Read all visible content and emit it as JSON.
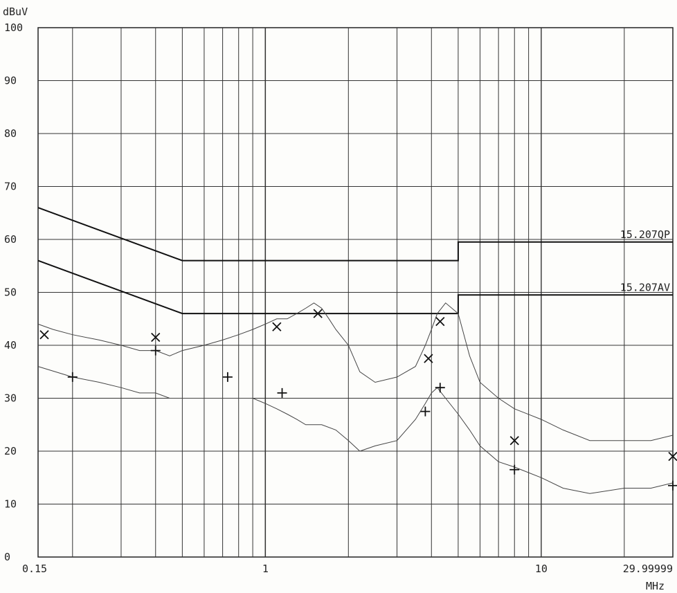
{
  "chart_data": {
    "type": "line",
    "xscale": "log",
    "xlim": [
      0.15,
      29.99999
    ],
    "ylim": [
      0,
      100
    ],
    "ylabel": "dBuV",
    "xlabel": "MHz",
    "yticks": [
      "0",
      "10",
      "20",
      "30",
      "40",
      "50",
      "60",
      "70",
      "80",
      "90",
      "100"
    ],
    "xticklabels": [
      {
        "value": 0.15,
        "label": "0.15"
      },
      {
        "value": 1,
        "label": "1"
      },
      {
        "value": 10,
        "label": "10"
      },
      {
        "value": 29.99999,
        "label": "29.99999"
      }
    ],
    "grid": true,
    "series": [
      {
        "name": "15.207QP",
        "kind": "limit",
        "x": [
          0.15,
          0.5,
          0.5,
          5,
          5,
          29.99999
        ],
        "y": [
          66,
          56,
          56,
          56,
          59.5,
          59.5
        ]
      },
      {
        "name": "15.207AV",
        "kind": "limit",
        "x": [
          0.15,
          0.5,
          0.5,
          5,
          5,
          29.99999
        ],
        "y": [
          56,
          46,
          46,
          46,
          49.5,
          49.5
        ]
      },
      {
        "name": "",
        "kind": "trace",
        "x": [
          0.15,
          0.17,
          0.2,
          0.25,
          0.3,
          0.35,
          0.4,
          0.45,
          0.5,
          0.6,
          0.7,
          0.8,
          0.9,
          1.0,
          1.1,
          1.2,
          1.3,
          1.4,
          1.5,
          1.6,
          1.7,
          1.8,
          2.0,
          2.2,
          2.5,
          3.0,
          3.5,
          3.8,
          4.0,
          4.2,
          4.5,
          5.0,
          5.5,
          6.0,
          7.0,
          8.0,
          10,
          12,
          15,
          20,
          25,
          29.99999
        ],
        "y": [
          44,
          43,
          42,
          41,
          40,
          39,
          39,
          38,
          39,
          40,
          41,
          42,
          43,
          44,
          45,
          45,
          46,
          47,
          48,
          47,
          45,
          43,
          40,
          35,
          33,
          34,
          36,
          40,
          43,
          46,
          48,
          46,
          38,
          33,
          30,
          28,
          26,
          24,
          22,
          22,
          22,
          23
        ]
      },
      {
        "name": "",
        "kind": "trace",
        "x": [
          0.15,
          0.2,
          0.25,
          0.3,
          0.35,
          0.4,
          0.45,
          0.5,
          0.6,
          0.7,
          0.8,
          0.9,
          1.0,
          1.1,
          1.2,
          1.3,
          1.4,
          1.5,
          1.6,
          1.8,
          2.0,
          2.2,
          2.5,
          3.0,
          3.5,
          3.8,
          4.0,
          4.2,
          4.5,
          5.0,
          5.5,
          6.0,
          7.0,
          8.0,
          10,
          12,
          15,
          20,
          25,
          29.99999
        ],
        "y": [
          36,
          34,
          33,
          32,
          31,
          31,
          30,
          30,
          30,
          30,
          30,
          30,
          29,
          28,
          27,
          26,
          25,
          25,
          25,
          24,
          22,
          20,
          21,
          22,
          26,
          29,
          31,
          32,
          30,
          27,
          24,
          21,
          18,
          17,
          15,
          13,
          12,
          13,
          13,
          14
        ]
      },
      {
        "name": "",
        "kind": "qp_markers",
        "marker": "x",
        "x": [
          0.158,
          0.4,
          1.1,
          1.55,
          3.9,
          4.3,
          8.0,
          29.99999
        ],
        "y": [
          42,
          41.5,
          43.5,
          46,
          37.5,
          44.5,
          22,
          19
        ]
      },
      {
        "name": "",
        "kind": "av_markers",
        "marker": "+",
        "x": [
          0.2,
          0.4,
          0.73,
          1.15,
          3.8,
          4.3,
          8.0,
          29.99999
        ],
        "y": [
          34,
          39,
          34,
          31,
          27.5,
          32,
          16.5,
          13.5
        ]
      }
    ]
  }
}
